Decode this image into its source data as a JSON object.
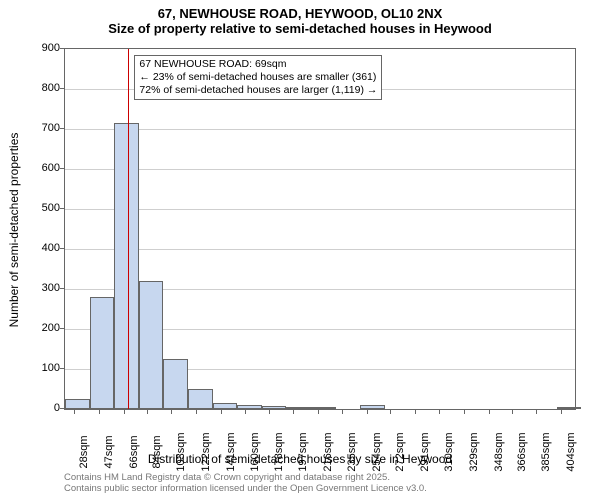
{
  "title_main": "67, NEWHOUSE ROAD, HEYWOOD, OL10 2NX",
  "title_sub": "Size of property relative to semi-detached houses in Heywood",
  "ylabel": "Number of semi-detached properties",
  "xlabel": "Distribution of semi-detached houses by size in Heywood",
  "footer_line1": "Contains HM Land Registry data © Crown copyright and database right 2025.",
  "footer_line2": "Contains public sector information licensed under the Open Government Licence v3.0.",
  "annotation": {
    "line1": "67 NEWHOUSE ROAD: 69sqm",
    "line2": "← 23% of semi-detached houses are smaller (361)",
    "line3": "72% of semi-detached houses are larger (1,119) →"
  },
  "chart": {
    "type": "histogram",
    "ylim": [
      0,
      900
    ],
    "ytick_step": 100,
    "xlim": [
      20,
      414
    ],
    "xticks": [
      28,
      47,
      66,
      84,
      103,
      122,
      141,
      160,
      178,
      197,
      216,
      235,
      254,
      272,
      291,
      310,
      329,
      348,
      366,
      385,
      404
    ],
    "xtick_suffix": "sqm",
    "bin_width": 19,
    "bar_color": "#c7d7ef",
    "bar_border": "#666666",
    "grid_color": "#cfcfcf",
    "background_color": "#ffffff",
    "refline_x": 69,
    "refline_color": "#cc0000",
    "bins": [
      {
        "start": 20,
        "value": 25
      },
      {
        "start": 39,
        "value": 280
      },
      {
        "start": 58,
        "value": 715
      },
      {
        "start": 77,
        "value": 320
      },
      {
        "start": 96,
        "value": 125
      },
      {
        "start": 115,
        "value": 50
      },
      {
        "start": 134,
        "value": 15
      },
      {
        "start": 153,
        "value": 10
      },
      {
        "start": 172,
        "value": 8
      },
      {
        "start": 191,
        "value": 5
      },
      {
        "start": 210,
        "value": 2
      },
      {
        "start": 229,
        "value": 0
      },
      {
        "start": 248,
        "value": 10
      },
      {
        "start": 267,
        "value": 0
      },
      {
        "start": 286,
        "value": 0
      },
      {
        "start": 305,
        "value": 0
      },
      {
        "start": 324,
        "value": 0
      },
      {
        "start": 343,
        "value": 0
      },
      {
        "start": 362,
        "value": 0
      },
      {
        "start": 381,
        "value": 0
      },
      {
        "start": 400,
        "value": 4
      }
    ]
  }
}
